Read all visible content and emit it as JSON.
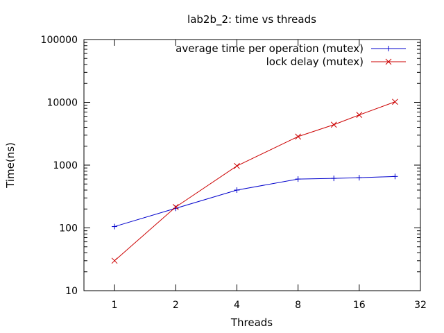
{
  "chart_data": {
    "type": "line",
    "title": "lab2b_2: time vs threads",
    "xlabel": "Threads",
    "ylabel": "Time(ns)",
    "xscale": "log2",
    "yscale": "log10",
    "xlim": [
      0.7071,
      32
    ],
    "ylim": [
      10,
      100000
    ],
    "xticks": [
      1,
      2,
      4,
      8,
      16,
      32
    ],
    "xtick_labels": [
      "1",
      "2",
      "4",
      "8",
      "16",
      "32"
    ],
    "yticks": [
      10,
      100,
      1000,
      10000,
      100000
    ],
    "ytick_labels": [
      "10",
      "100",
      "1000",
      "10000",
      "100000"
    ],
    "grid": false,
    "legend": "top-right",
    "series": [
      {
        "name": "average time per operation (mutex)",
        "color": "#0000cc",
        "marker": "plus",
        "x": [
          1,
          2,
          4,
          8,
          12,
          16,
          24
        ],
        "y": [
          105,
          205,
          400,
          600,
          615,
          630,
          660
        ]
      },
      {
        "name": "lock delay (mutex)",
        "color": "#cc0000",
        "marker": "cross",
        "x": [
          1,
          2,
          4,
          8,
          12,
          16,
          24
        ],
        "y": [
          30,
          215,
          970,
          2850,
          4400,
          6300,
          10200
        ]
      }
    ]
  }
}
